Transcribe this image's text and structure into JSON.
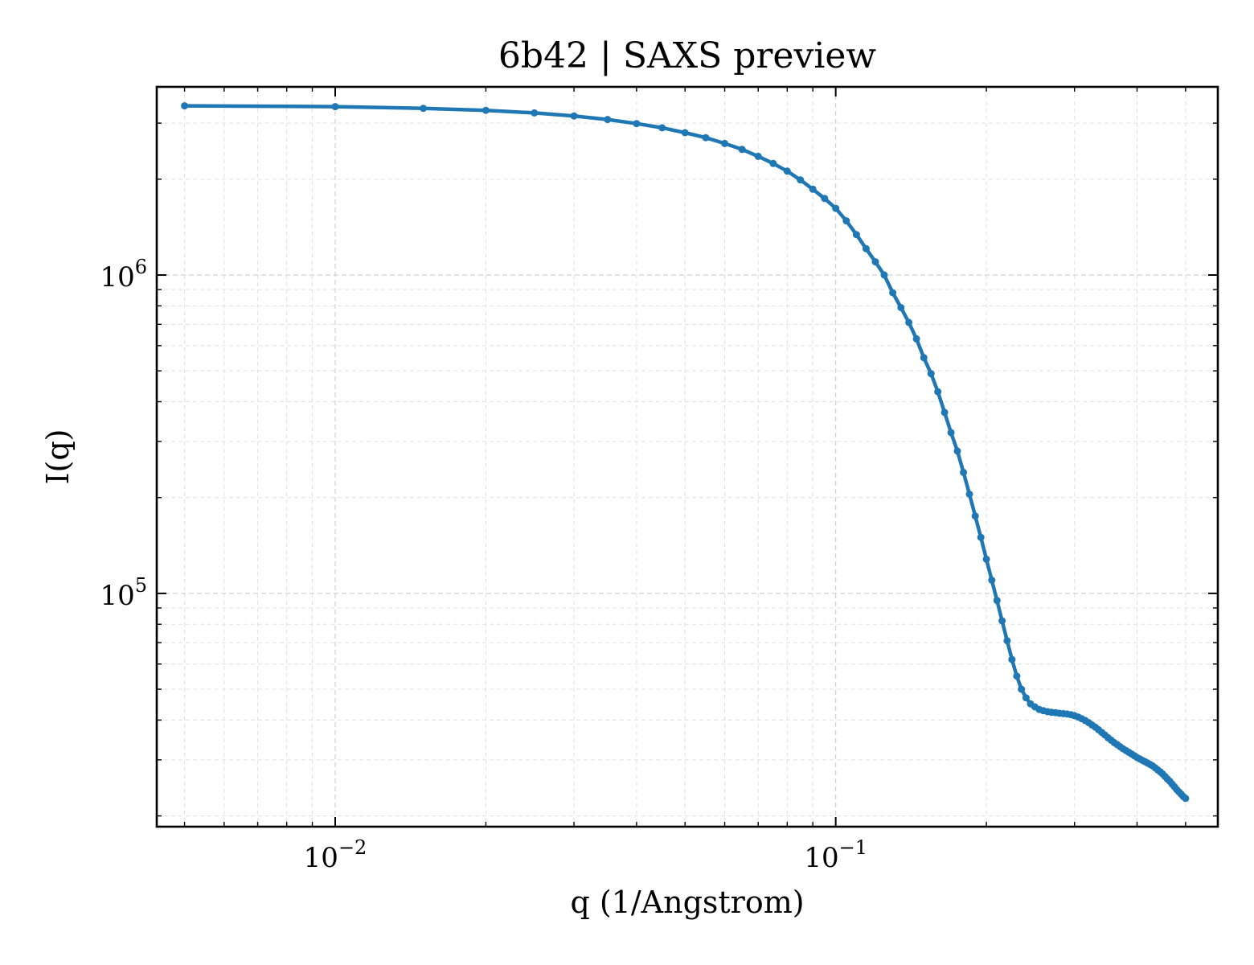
{
  "chart_data": {
    "type": "line",
    "title": "6b42 | SAXS preview",
    "xlabel": "q (1/Angstrom)",
    "ylabel": "I(q)",
    "xscale": "log",
    "yscale": "log",
    "xlim": [
      0.0044,
      0.58
    ],
    "ylim": [
      18500,
      3900000
    ],
    "grid": true,
    "x_ticks": [
      {
        "value": 0.01,
        "base": "10",
        "exp": "−2"
      },
      {
        "value": 0.1,
        "base": "10",
        "exp": "−1"
      }
    ],
    "y_ticks": [
      {
        "value": 100000,
        "base": "10",
        "exp": "5"
      },
      {
        "value": 1000000,
        "base": "10",
        "exp": "6"
      }
    ],
    "series": [
      {
        "color": "#1f77b4",
        "marker": "dot",
        "points": [
          [
            0.005,
            3400000
          ],
          [
            0.01,
            3380000
          ],
          [
            0.015,
            3340000
          ],
          [
            0.02,
            3290000
          ],
          [
            0.025,
            3230000
          ],
          [
            0.03,
            3160000
          ],
          [
            0.035,
            3080000
          ],
          [
            0.04,
            2990000
          ],
          [
            0.045,
            2900000
          ],
          [
            0.05,
            2800000
          ],
          [
            0.055,
            2700000
          ],
          [
            0.06,
            2590000
          ],
          [
            0.065,
            2480000
          ],
          [
            0.07,
            2360000
          ],
          [
            0.075,
            2240000
          ],
          [
            0.08,
            2120000
          ],
          [
            0.085,
            1990000
          ],
          [
            0.09,
            1860000
          ],
          [
            0.095,
            1740000
          ],
          [
            0.1,
            1620000
          ],
          [
            0.105,
            1480000
          ],
          [
            0.11,
            1340000
          ],
          [
            0.115,
            1210000
          ],
          [
            0.12,
            1100000
          ],
          [
            0.125,
            1000000
          ],
          [
            0.13,
            880000
          ],
          [
            0.135,
            790000
          ],
          [
            0.14,
            710000
          ],
          [
            0.145,
            630000
          ],
          [
            0.15,
            550000
          ],
          [
            0.155,
            490000
          ],
          [
            0.16,
            430000
          ],
          [
            0.165,
            370000
          ],
          [
            0.17,
            320000
          ],
          [
            0.175,
            280000
          ],
          [
            0.18,
            240000
          ],
          [
            0.185,
            205000
          ],
          [
            0.19,
            175000
          ],
          [
            0.195,
            150000
          ],
          [
            0.2,
            128000
          ],
          [
            0.205,
            110000
          ],
          [
            0.21,
            95000
          ],
          [
            0.215,
            82000
          ],
          [
            0.22,
            71000
          ],
          [
            0.225,
            62000
          ],
          [
            0.23,
            55000
          ],
          [
            0.235,
            50000
          ],
          [
            0.24,
            47000
          ],
          [
            0.245,
            45000
          ],
          [
            0.25,
            44000
          ],
          [
            0.255,
            43200
          ],
          [
            0.26,
            42800
          ],
          [
            0.265,
            42500
          ],
          [
            0.27,
            42300
          ],
          [
            0.275,
            42200
          ],
          [
            0.28,
            42000
          ],
          [
            0.285,
            41900
          ],
          [
            0.29,
            41800
          ],
          [
            0.295,
            41600
          ],
          [
            0.3,
            41300
          ],
          [
            0.305,
            40900
          ],
          [
            0.31,
            40400
          ],
          [
            0.315,
            39900
          ],
          [
            0.32,
            39300
          ],
          [
            0.325,
            38600
          ],
          [
            0.33,
            38000
          ],
          [
            0.335,
            37300
          ],
          [
            0.34,
            36600
          ],
          [
            0.345,
            35900
          ],
          [
            0.35,
            35200
          ],
          [
            0.355,
            34600
          ],
          [
            0.36,
            34000
          ],
          [
            0.365,
            33500
          ],
          [
            0.37,
            33000
          ],
          [
            0.375,
            32500
          ],
          [
            0.38,
            32100
          ],
          [
            0.385,
            31700
          ],
          [
            0.39,
            31300
          ],
          [
            0.395,
            30900
          ],
          [
            0.4,
            30500
          ],
          [
            0.405,
            30200
          ],
          [
            0.41,
            29900
          ],
          [
            0.415,
            29600
          ],
          [
            0.42,
            29300
          ],
          [
            0.425,
            29000
          ],
          [
            0.43,
            28700
          ],
          [
            0.435,
            28300
          ],
          [
            0.44,
            27900
          ],
          [
            0.445,
            27500
          ],
          [
            0.45,
            27100
          ],
          [
            0.455,
            26600
          ],
          [
            0.46,
            26100
          ],
          [
            0.465,
            25700
          ],
          [
            0.47,
            25200
          ],
          [
            0.475,
            24700
          ],
          [
            0.48,
            24200
          ],
          [
            0.485,
            23800
          ],
          [
            0.49,
            23400
          ],
          [
            0.495,
            23000
          ],
          [
            0.5,
            22700
          ]
        ]
      }
    ]
  }
}
